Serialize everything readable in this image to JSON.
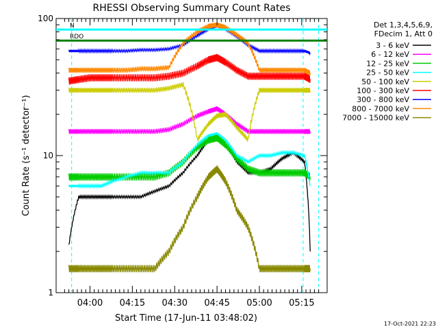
{
  "chart_data": {
    "type": "line",
    "title": "RHESSI Observing Summary Count Rates",
    "xlabel": "Start Time (17-Jun-11 03:48:02)",
    "ylabel": "Count Rate (s⁻¹ detector⁻¹)",
    "y_scale": "log",
    "ylim": [
      1,
      100
    ],
    "y_ticks": [
      {
        "label": "1",
        "value": 1
      },
      {
        "label": "10",
        "value": 10
      },
      {
        "label": "100",
        "value": 100
      }
    ],
    "xlim_minutes_since_start": [
      0,
      96
    ],
    "x_ticks": [
      {
        "label": "04:00",
        "minute": 12
      },
      {
        "label": "04:15",
        "minute": 27
      },
      {
        "label": "04:30",
        "minute": 42
      },
      {
        "label": "04:45",
        "minute": 57
      },
      {
        "label": "05:00",
        "minute": 72
      },
      {
        "label": "05:15",
        "minute": 87
      }
    ],
    "legend_header": [
      "Det 1,3,4,5,6,9,",
      "FDecim 1, Att 0"
    ],
    "legend_placement": "right",
    "series": [
      {
        "name": "3 - 6 keV",
        "color": "#000000",
        "x": [
          4.5,
          8,
          12,
          16,
          20,
          25,
          30,
          35,
          40,
          45,
          50,
          54,
          57,
          60,
          64,
          68,
          72,
          76,
          80,
          84,
          88,
          90
        ],
        "y": [
          2.2,
          5,
          5,
          5,
          5,
          5,
          5,
          5.5,
          6,
          7.5,
          10,
          13,
          14,
          12,
          9,
          7.5,
          7.5,
          8,
          9.5,
          10.5,
          9,
          2
        ]
      },
      {
        "name": "6 - 12 keV",
        "color": "#ff00ff",
        "x": [
          4.5,
          8,
          12,
          16,
          20,
          25,
          30,
          35,
          40,
          45,
          50,
          54,
          57,
          60,
          64,
          68,
          72,
          76,
          80,
          84,
          88,
          90
        ],
        "y": [
          15,
          15,
          15,
          15,
          15,
          15,
          15,
          15,
          15.5,
          17,
          19.5,
          21,
          22,
          20,
          17,
          15,
          15,
          15,
          15,
          15,
          15,
          15
        ]
      },
      {
        "name": "12 - 25 keV",
        "color": "#00cc00",
        "x": [
          4.5,
          8,
          12,
          16,
          20,
          25,
          30,
          35,
          40,
          45,
          50,
          54,
          57,
          60,
          64,
          68,
          72,
          76,
          80,
          84,
          88,
          90
        ],
        "y": [
          7,
          7,
          7,
          7,
          7,
          7,
          7,
          7,
          7.5,
          9,
          11.5,
          13,
          13.5,
          12,
          9.5,
          8,
          7.5,
          7.5,
          7.5,
          7.5,
          7.5,
          7
        ]
      },
      {
        "name": "25 - 50 keV",
        "color": "#00ffff",
        "x": [
          4.5,
          8,
          12,
          16,
          20,
          25,
          30,
          35,
          40,
          45,
          50,
          54,
          57,
          60,
          64,
          68,
          72,
          76,
          80,
          84,
          88,
          90
        ],
        "y": [
          6,
          6,
          6,
          6,
          6.5,
          7,
          7.5,
          7.5,
          7.5,
          9,
          12,
          14,
          14.5,
          13,
          10,
          9,
          10,
          10,
          10.5,
          10.5,
          10,
          6
        ]
      },
      {
        "name": "50 - 100 keV",
        "color": "#cccc00",
        "x": [
          4.5,
          8,
          12,
          16,
          20,
          25,
          30,
          35,
          40,
          45,
          50,
          54,
          57,
          60,
          64,
          68,
          72,
          76,
          80,
          84,
          88,
          90
        ],
        "y": [
          30,
          30,
          30,
          30,
          30,
          30,
          30,
          30,
          31,
          33,
          13,
          17,
          19.5,
          20,
          16,
          13,
          30,
          30,
          30,
          30,
          30,
          30
        ]
      },
      {
        "name": "100 - 300 keV",
        "color": "#ff0000",
        "x": [
          4.5,
          8,
          12,
          16,
          20,
          25,
          30,
          35,
          40,
          45,
          50,
          54,
          57,
          60,
          64,
          68,
          72,
          76,
          80,
          84,
          88,
          90
        ],
        "y": [
          35,
          36,
          37,
          37,
          37,
          37,
          37,
          37,
          38,
          40,
          45,
          50,
          52,
          48,
          42,
          38,
          38,
          38,
          38,
          38,
          38,
          36
        ]
      },
      {
        "name": "300 - 800 keV",
        "color": "#0000ff",
        "x": [
          4.5,
          8,
          12,
          16,
          20,
          25,
          30,
          35,
          40,
          45,
          50,
          54,
          57,
          60,
          64,
          68,
          72,
          76,
          80,
          84,
          88,
          90
        ],
        "y": [
          58,
          58,
          58,
          58,
          58,
          58,
          59,
          59,
          60,
          64,
          75,
          84,
          88,
          84,
          74,
          64,
          58,
          58,
          58,
          58,
          58,
          56
        ]
      },
      {
        "name": "800 - 7000 keV",
        "color": "#ff8800",
        "x": [
          4.5,
          8,
          12,
          16,
          20,
          25,
          30,
          35,
          40,
          45,
          50,
          54,
          57,
          60,
          64,
          68,
          72,
          76,
          80,
          84,
          88,
          90
        ],
        "y": [
          42,
          42,
          42,
          42,
          42,
          42,
          43,
          43,
          44,
          66,
          80,
          88,
          90,
          86,
          76,
          66,
          42,
          42,
          42,
          42,
          42,
          40
        ]
      },
      {
        "name": "7000 - 15000 keV",
        "color": "#888800",
        "x": [
          4.5,
          8,
          12,
          16,
          20,
          25,
          30,
          35,
          40,
          45,
          50,
          54,
          57,
          60,
          64,
          68,
          72,
          76,
          80,
          84,
          88,
          90
        ],
        "y": [
          1.5,
          1.5,
          1.5,
          1.5,
          1.5,
          1.5,
          1.5,
          1.5,
          2,
          3,
          5,
          7,
          8,
          6.5,
          4,
          3,
          1.5,
          1.5,
          1.5,
          1.5,
          1.5,
          1.5
        ]
      }
    ],
    "overlays": [
      {
        "label": "RDO",
        "color": "#008000",
        "y": 69
      },
      {
        "label": "N",
        "color": "#00ffff",
        "y": 83
      }
    ],
    "footer_timestamp": "17-Oct-2021 22:23"
  }
}
